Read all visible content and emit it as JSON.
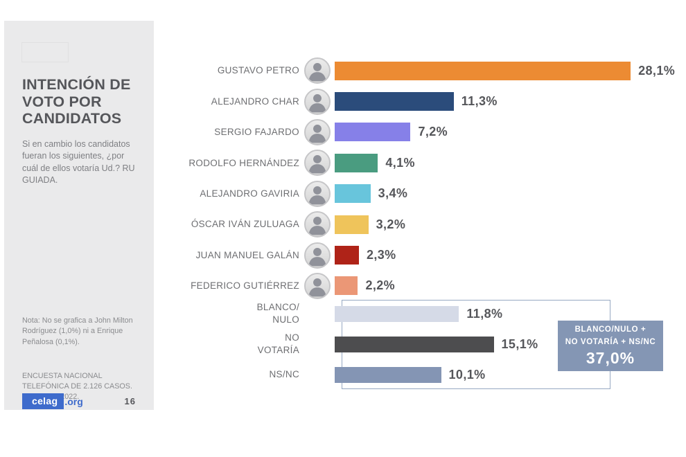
{
  "sidebar": {
    "title": "INTENCIÓN DE\nVOTO POR\nCANDIDATOS",
    "subtitle": "Si en cambio los candidatos fueran los siguientes, ¿por cuál de ellos votaría Ud.? RU GUIADA.",
    "note": "Nota: No se grafica a John Milton Rodríguez (1,0%) ni a Enrique Peñalosa (0,1%).",
    "source": "ENCUESTA NACIONAL TELEFÓNICA DE 2.126 CASOS. FEBRERO 2022.",
    "logo_brand": "celag",
    "logo_suffix": ".org",
    "page_number": "16",
    "flag": {
      "name": "colombia-flag",
      "yellow": "#E2C23C",
      "blue": "#3C55A6",
      "red": "#CD3C5E"
    }
  },
  "chart_data": {
    "type": "bar",
    "orientation": "horizontal",
    "title": "INTENCIÓN DE VOTO POR CANDIDATOS",
    "unit": "%",
    "xlim": [
      0,
      30
    ],
    "decimal_style": "comma",
    "candidates": [
      {
        "label": "GUSTAVO PETRO",
        "value": 28.1,
        "display": "28,1%",
        "color": "#EC8B33"
      },
      {
        "label": "ALEJANDRO CHAR",
        "value": 11.3,
        "display": "11,3%",
        "color": "#2B4C7B"
      },
      {
        "label": "SERGIO FAJARDO",
        "value": 7.2,
        "display": "7,2%",
        "color": "#8680E8"
      },
      {
        "label": "RODOLFO HERNÁNDEZ",
        "value": 4.1,
        "display": "4,1%",
        "color": "#4A9C80"
      },
      {
        "label": "ALEJANDRO GAVIRIA",
        "value": 3.4,
        "display": "3,4%",
        "color": "#68C5DC"
      },
      {
        "label": "ÓSCAR IVÁN ZULUAGA",
        "value": 3.2,
        "display": "3,2%",
        "color": "#EFC45B"
      },
      {
        "label": "JUAN MANUEL GALÁN",
        "value": 2.3,
        "display": "2,3%",
        "color": "#AF2318"
      },
      {
        "label": "FEDERICO GUTIÉRREZ",
        "value": 2.2,
        "display": "2,2%",
        "color": "#EB9776"
      }
    ],
    "non_candidate_options": [
      {
        "label_lines": [
          "BLANCO/",
          "NULO"
        ],
        "value": 11.8,
        "display": "11,8%",
        "color": "#D5DAE7"
      },
      {
        "label_lines": [
          "NO",
          "VOTARÍA"
        ],
        "value": 15.1,
        "display": "15,1%",
        "color": "#4D4D4F"
      },
      {
        "label_lines": [
          "NS/NC"
        ],
        "value": 10.1,
        "display": "10,1%",
        "color": "#8495B4"
      }
    ],
    "aggregate_callout": {
      "line1": "BLANCO/NULO +",
      "line2": "NO VOTARÍA + NS/NC",
      "display": "37,0%",
      "value": 37.0,
      "color": "#8496B4"
    }
  }
}
